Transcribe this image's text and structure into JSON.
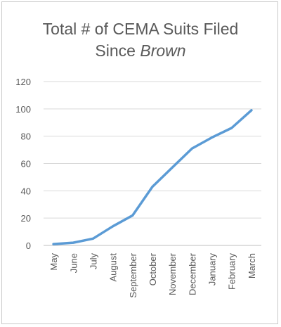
{
  "chart_data": {
    "type": "line",
    "title_line1": "Total # of CEMA Suits Filed",
    "title_line2_prefix": "Since ",
    "title_line2_italic": "Brown",
    "xlabel": "",
    "ylabel": "",
    "categories": [
      "May",
      "June",
      "July",
      "August",
      "September",
      "October",
      "November",
      "December",
      "January",
      "February",
      "March"
    ],
    "series": [
      {
        "values": [
          1,
          2,
          5,
          14,
          22,
          43,
          57,
          71,
          79,
          86,
          99
        ],
        "color": "#5b9bd5"
      }
    ],
    "ylim": [
      0,
      120
    ],
    "yticks": [
      0,
      20,
      40,
      60,
      80,
      100,
      120
    ],
    "grid": true,
    "legend": "none",
    "gridline_color": "#d9d9d9",
    "text_color": "#595959"
  }
}
